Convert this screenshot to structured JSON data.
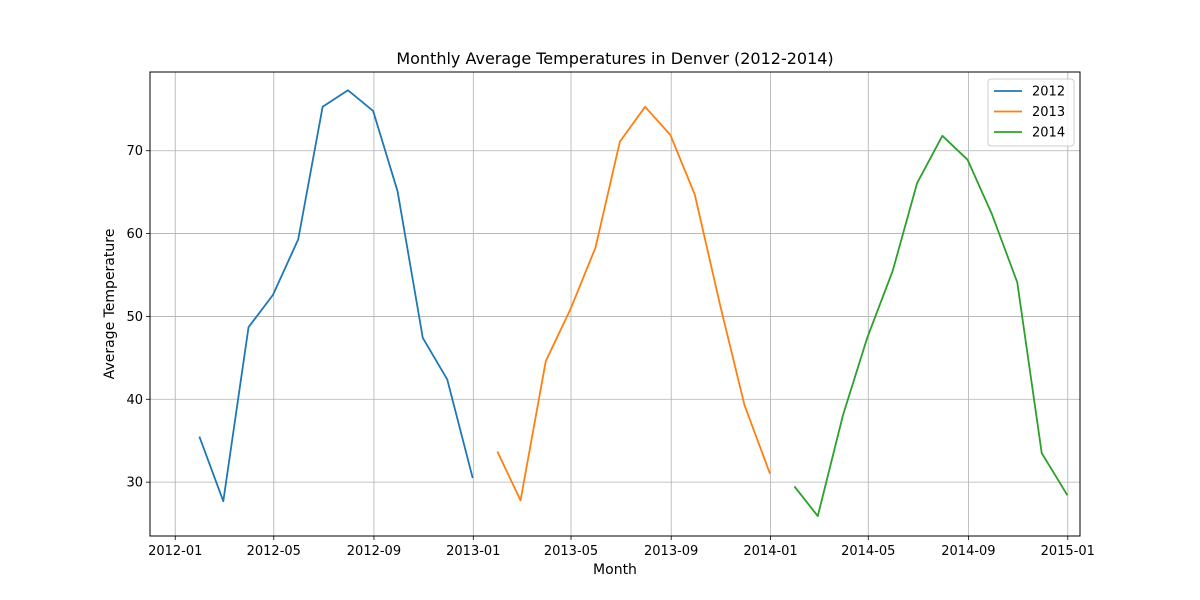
{
  "chart_data": {
    "type": "line",
    "title": "Monthly Average Temperatures in Denver (2012-2014)",
    "xlabel": "Month",
    "ylabel": "Average Temperature",
    "xlim": [
      "2011-12-01",
      "2015-01-16"
    ],
    "ylim": [
      23.5,
      79.5
    ],
    "x_ticks": [
      "2012-01",
      "2012-05",
      "2012-09",
      "2013-01",
      "2013-05",
      "2013-09",
      "2014-01",
      "2014-05",
      "2014-09",
      "2015-01"
    ],
    "y_ticks": [
      30,
      40,
      50,
      60,
      70
    ],
    "grid": true,
    "legend_position": "top-right",
    "series": [
      {
        "name": "2012",
        "color": "#1f77b4",
        "x": [
          "2012-01-31",
          "2012-02-29",
          "2012-03-31",
          "2012-04-30",
          "2012-05-31",
          "2012-06-30",
          "2012-07-31",
          "2012-08-31",
          "2012-09-30",
          "2012-10-31",
          "2012-11-30",
          "2012-12-31"
        ],
        "values": [
          35.4,
          27.7,
          48.7,
          52.6,
          59.3,
          75.3,
          77.3,
          74.8,
          65.1,
          47.4,
          42.4,
          30.6
        ]
      },
      {
        "name": "2013",
        "color": "#ff7f0e",
        "x": [
          "2013-01-31",
          "2013-02-28",
          "2013-03-31",
          "2013-04-30",
          "2013-05-31",
          "2013-06-30",
          "2013-07-31",
          "2013-08-31",
          "2013-09-30",
          "2013-10-31",
          "2013-11-30",
          "2013-12-31"
        ],
        "values": [
          33.6,
          27.8,
          44.6,
          50.8,
          58.3,
          71.1,
          75.3,
          71.9,
          64.7,
          51.4,
          39.3,
          31.1
        ]
      },
      {
        "name": "2014",
        "color": "#2ca02c",
        "x": [
          "2014-01-31",
          "2014-02-28",
          "2014-03-31",
          "2014-04-30",
          "2014-05-31",
          "2014-06-30",
          "2014-07-31",
          "2014-08-31",
          "2014-09-30",
          "2014-10-31",
          "2014-11-30",
          "2014-12-31"
        ],
        "values": [
          29.4,
          25.9,
          38.1,
          47.5,
          55.5,
          66.1,
          71.8,
          68.9,
          62.3,
          54.1,
          33.5,
          28.5
        ]
      }
    ]
  }
}
